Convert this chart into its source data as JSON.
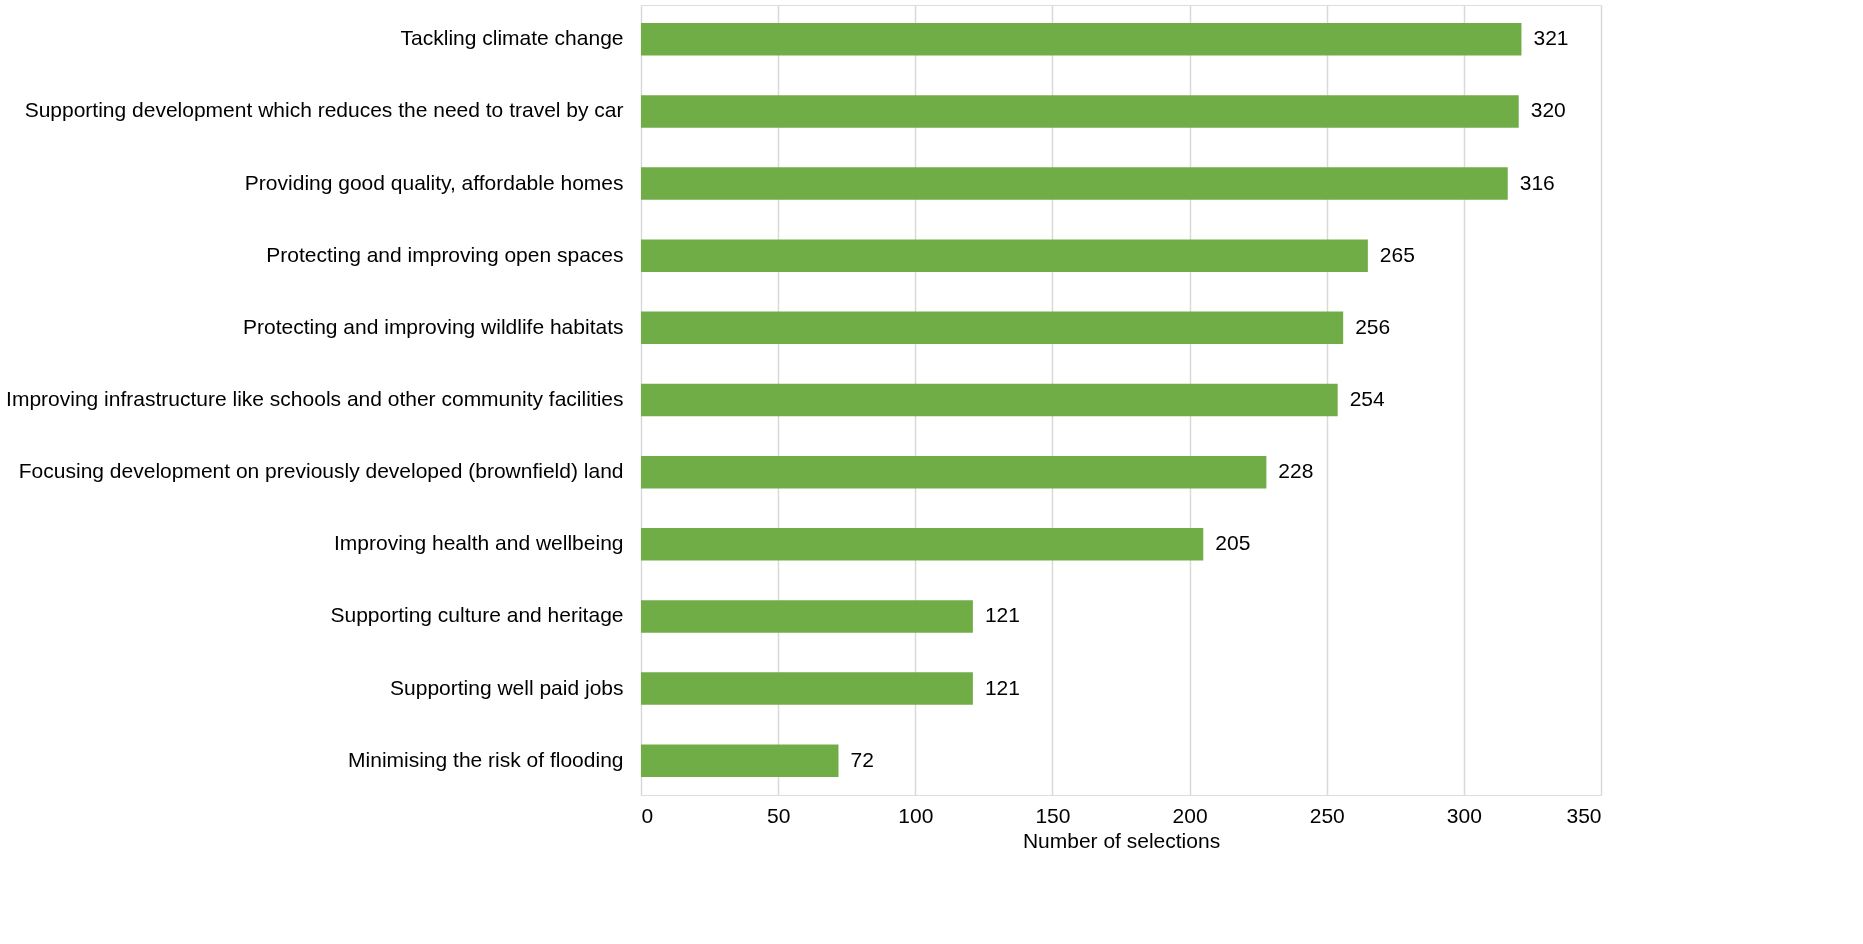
{
  "chart_data": {
    "type": "bar",
    "orientation": "horizontal",
    "xlabel": "Number of selections",
    "categories": [
      "Tackling climate change",
      "Supporting development which reduces the need to travel by car",
      "Providing good quality, affordable homes",
      "Protecting and improving open spaces",
      "Protecting and improving wildlife habitats",
      "Improving infrastructure like schools and other community facilities",
      "Focusing development on previously developed (brownfield) land",
      "Improving health and wellbeing",
      "Supporting culture and heritage",
      "Supporting well paid jobs",
      "Minimising the risk of flooding"
    ],
    "values": [
      321,
      320,
      316,
      265,
      256,
      254,
      228,
      205,
      121,
      121,
      72
    ],
    "color": "#70ad47",
    "xlim": [
      0,
      350
    ],
    "xticks": [
      0,
      50,
      100,
      150,
      200,
      250,
      300,
      350
    ],
    "grid": "x",
    "data_labels": true
  }
}
